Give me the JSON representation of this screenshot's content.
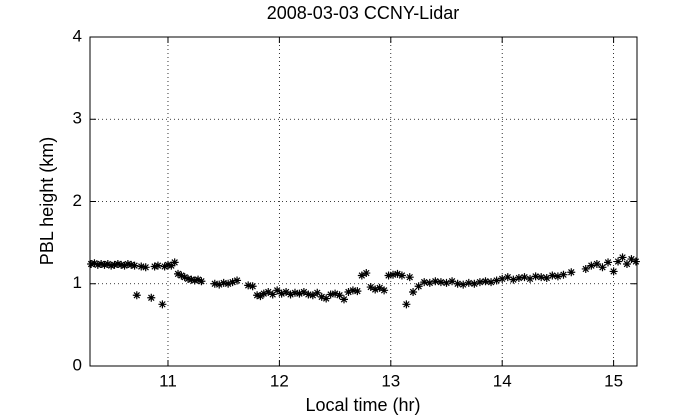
{
  "chart_data": {
    "type": "scatter",
    "title": "2008-03-03 CCNY-Lidar",
    "xlabel": "Local time (hr)",
    "ylabel": "PBL height (km)",
    "color": "#000000",
    "marker": "*",
    "grid": true,
    "xlim": [
      10.3,
      15.21
    ],
    "ylim": [
      0,
      4
    ],
    "xticks": [
      11,
      12,
      13,
      14,
      15
    ],
    "yticks": [
      0,
      1,
      2,
      3,
      4
    ],
    "x": [
      10.31,
      10.34,
      10.37,
      10.4,
      10.43,
      10.46,
      10.49,
      10.52,
      10.55,
      10.58,
      10.61,
      10.64,
      10.67,
      10.7,
      10.72,
      10.76,
      10.8,
      10.85,
      10.88,
      10.91,
      10.95,
      10.97,
      11.0,
      11.03,
      11.06,
      11.09,
      11.12,
      11.15,
      11.18,
      11.21,
      11.24,
      11.27,
      11.3,
      11.42,
      11.46,
      11.5,
      11.54,
      11.58,
      11.62,
      11.72,
      11.76,
      11.8,
      11.83,
      11.86,
      11.9,
      11.94,
      11.98,
      12.02,
      12.06,
      12.1,
      12.14,
      12.18,
      12.22,
      12.26,
      12.3,
      12.34,
      12.38,
      12.42,
      12.46,
      12.5,
      12.54,
      12.58,
      12.62,
      12.66,
      12.7,
      12.74,
      12.78,
      12.82,
      12.86,
      12.9,
      12.94,
      12.98,
      13.02,
      13.06,
      13.1,
      13.14,
      13.17,
      13.2,
      13.25,
      13.3,
      13.35,
      13.4,
      13.45,
      13.5,
      13.55,
      13.6,
      13.65,
      13.7,
      13.75,
      13.8,
      13.85,
      13.9,
      13.95,
      14.0,
      14.05,
      14.1,
      14.15,
      14.2,
      14.25,
      14.3,
      14.35,
      14.4,
      14.45,
      14.5,
      14.55,
      14.62,
      14.75,
      14.8,
      14.85,
      14.9,
      14.95,
      15.0,
      15.04,
      15.08,
      15.12,
      15.16,
      15.2
    ],
    "values": [
      1.24,
      1.25,
      1.23,
      1.24,
      1.23,
      1.24,
      1.22,
      1.23,
      1.24,
      1.23,
      1.22,
      1.24,
      1.23,
      1.22,
      0.86,
      1.21,
      1.2,
      0.83,
      1.21,
      1.22,
      0.75,
      1.21,
      1.23,
      1.22,
      1.26,
      1.12,
      1.1,
      1.08,
      1.06,
      1.05,
      1.04,
      1.05,
      1.03,
      1.0,
      0.99,
      1.01,
      1.0,
      1.02,
      1.04,
      0.98,
      0.97,
      0.86,
      0.85,
      0.88,
      0.9,
      0.87,
      0.92,
      0.88,
      0.9,
      0.87,
      0.89,
      0.88,
      0.9,
      0.87,
      0.86,
      0.89,
      0.84,
      0.82,
      0.87,
      0.88,
      0.86,
      0.81,
      0.9,
      0.92,
      0.91,
      1.1,
      1.13,
      0.96,
      0.93,
      0.95,
      0.92,
      1.1,
      1.11,
      1.12,
      1.1,
      0.75,
      1.08,
      0.9,
      0.97,
      1.02,
      1.01,
      1.03,
      1.02,
      1.01,
      1.03,
      1.0,
      0.99,
      1.01,
      1.0,
      1.02,
      1.03,
      1.02,
      1.04,
      1.06,
      1.08,
      1.05,
      1.07,
      1.08,
      1.06,
      1.09,
      1.08,
      1.07,
      1.1,
      1.09,
      1.11,
      1.14,
      1.18,
      1.22,
      1.24,
      1.2,
      1.26,
      1.15,
      1.27,
      1.32,
      1.24,
      1.3,
      1.27
    ]
  }
}
